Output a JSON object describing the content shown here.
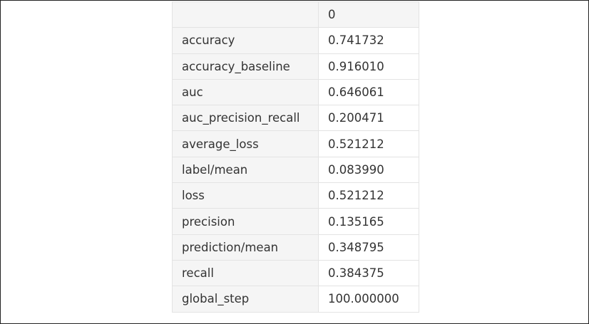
{
  "table": {
    "header": {
      "label": "",
      "value": "0"
    },
    "rows": [
      {
        "label": "accuracy",
        "value": "0.741732"
      },
      {
        "label": "accuracy_baseline",
        "value": "0.916010"
      },
      {
        "label": "auc",
        "value": "0.646061"
      },
      {
        "label": "auc_precision_recall",
        "value": "0.200471"
      },
      {
        "label": "average_loss",
        "value": "0.521212"
      },
      {
        "label": "label/mean",
        "value": "0.083990"
      },
      {
        "label": "loss",
        "value": "0.521212"
      },
      {
        "label": "precision",
        "value": "0.135165"
      },
      {
        "label": "prediction/mean",
        "value": "0.348795"
      },
      {
        "label": "recall",
        "value": "0.384375"
      },
      {
        "label": "global_step",
        "value": "100.000000"
      }
    ]
  }
}
